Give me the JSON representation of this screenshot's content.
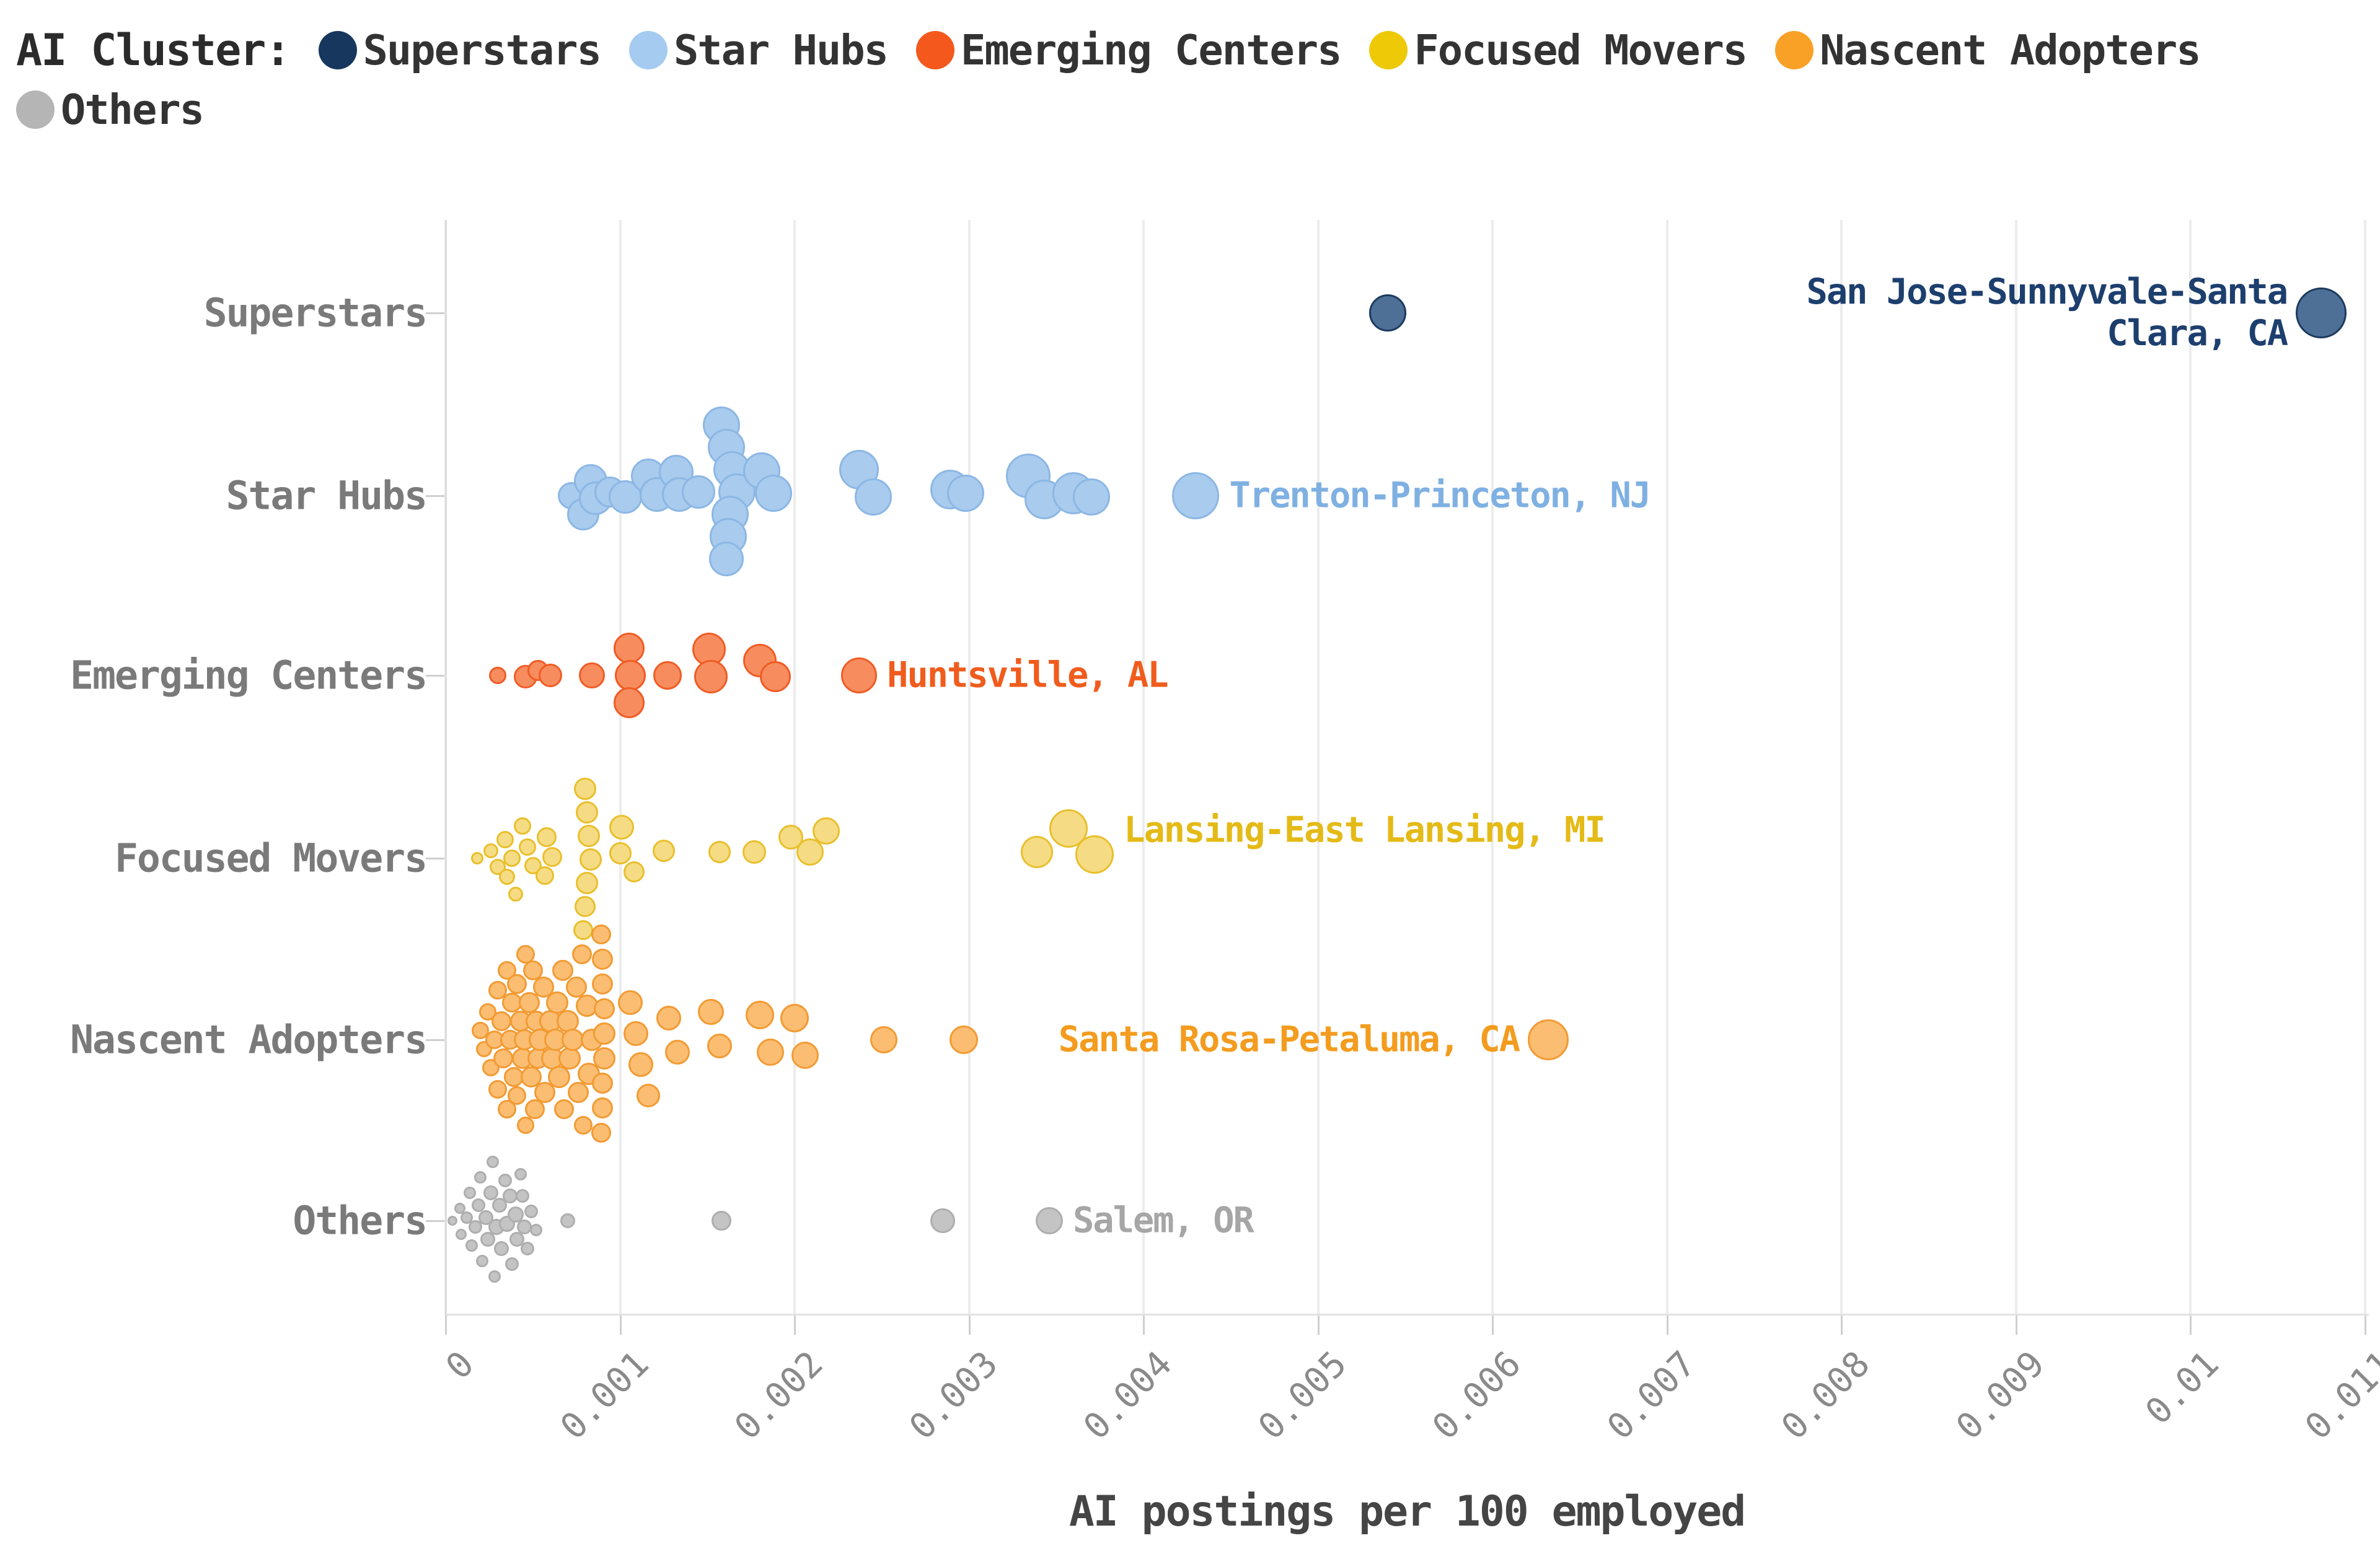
{
  "legend": {
    "title": "AI Cluster:",
    "items": [
      {
        "label": "Superstars",
        "color": "#17375e"
      },
      {
        "label": "Star Hubs",
        "color": "#a6cbf0"
      },
      {
        "label": "Emerging Centers",
        "color": "#f4581c"
      },
      {
        "label": "Focused Movers",
        "color": "#edc907"
      },
      {
        "label": "Nascent Adopters",
        "color": "#f9a126"
      },
      {
        "label": "Others",
        "color": "#b5b5b5"
      }
    ]
  },
  "chart_data": {
    "type": "scatter",
    "title": "",
    "xlabel": "AI postings per 100 employed",
    "ylabel": "",
    "x_range": [
      0,
      0.011
    ],
    "x_ticks": [
      "0",
      "0.001",
      "0.002",
      "0.003",
      "0.004",
      "0.005",
      "0.006",
      "0.007",
      "0.008",
      "0.009",
      "0.01",
      "0.011"
    ],
    "categories": [
      "Superstars",
      "Star Hubs",
      "Emerging Centers",
      "Focused Movers",
      "Nascent Adopters",
      "Others"
    ],
    "grid": true,
    "legend_position": "top",
    "series": [
      {
        "name": "Superstars",
        "fill": "#4f7096",
        "stroke": "#1c3a5f",
        "label_color": "#1d3f6e",
        "points": [
          {
            "x": 0.0054,
            "dy": 0,
            "r": 30
          },
          {
            "x": 0.01075,
            "dy": 0,
            "r": 41,
            "label": {
              "text": "San Jose-Sunnyvale-Santa\nClara, CA",
              "side": "left"
            }
          }
        ]
      },
      {
        "name": "Star Hubs",
        "fill": "#a8cbee",
        "stroke": "#8cb7e4",
        "label_color": "#7fb0e2",
        "points": [
          {
            "x": 0.00072,
            "dy": 0,
            "r": 22
          },
          {
            "x": 0.00079,
            "dy": 30,
            "r": 26
          },
          {
            "x": 0.00083,
            "dy": -24,
            "r": 27
          },
          {
            "x": 0.00086,
            "dy": 4,
            "r": 27
          },
          {
            "x": 0.00094,
            "dy": -6,
            "r": 25
          },
          {
            "x": 0.00103,
            "dy": 2,
            "r": 27
          },
          {
            "x": 0.00116,
            "dy": -32,
            "r": 28
          },
          {
            "x": 0.00121,
            "dy": -2,
            "r": 28
          },
          {
            "x": 0.00132,
            "dy": -38,
            "r": 28
          },
          {
            "x": 0.00134,
            "dy": -2,
            "r": 28
          },
          {
            "x": 0.00145,
            "dy": -6,
            "r": 27
          },
          {
            "x": 0.00158,
            "dy": -114,
            "r": 30
          },
          {
            "x": 0.00161,
            "dy": -78,
            "r": 30
          },
          {
            "x": 0.00164,
            "dy": -42,
            "r": 30
          },
          {
            "x": 0.00167,
            "dy": -6,
            "r": 30
          },
          {
            "x": 0.00163,
            "dy": 30,
            "r": 30
          },
          {
            "x": 0.00162,
            "dy": 66,
            "r": 30
          },
          {
            "x": 0.00161,
            "dy": 102,
            "r": 28
          },
          {
            "x": 0.00181,
            "dy": -40,
            "r": 30
          },
          {
            "x": 0.00188,
            "dy": -4,
            "r": 30
          },
          {
            "x": 0.00237,
            "dy": -42,
            "r": 32
          },
          {
            "x": 0.00245,
            "dy": 2,
            "r": 30
          },
          {
            "x": 0.00289,
            "dy": -10,
            "r": 32
          },
          {
            "x": 0.00298,
            "dy": -4,
            "r": 30
          },
          {
            "x": 0.00334,
            "dy": -32,
            "r": 36
          },
          {
            "x": 0.00343,
            "dy": 6,
            "r": 32
          },
          {
            "x": 0.0036,
            "dy": -4,
            "r": 34
          },
          {
            "x": 0.0037,
            "dy": 2,
            "r": 30
          },
          {
            "x": 0.0043,
            "dy": 0,
            "r": 38,
            "label": {
              "text": "Trenton-Princeton, NJ",
              "side": "right"
            }
          }
        ]
      },
      {
        "name": "Emerging Centers",
        "fill": "#f78d5e",
        "stroke": "#f05c25",
        "label_color": "#f05c1d",
        "points": [
          {
            "x": 0.0003,
            "dy": 0,
            "r": 14
          },
          {
            "x": 0.00046,
            "dy": 2,
            "r": 19
          },
          {
            "x": 0.00053,
            "dy": -8,
            "r": 17
          },
          {
            "x": 0.0006,
            "dy": 0,
            "r": 19
          },
          {
            "x": 0.00084,
            "dy": 0,
            "r": 21
          },
          {
            "x": 0.00105,
            "dy": -44,
            "r": 25
          },
          {
            "x": 0.00106,
            "dy": 0,
            "r": 25
          },
          {
            "x": 0.00105,
            "dy": 44,
            "r": 25
          },
          {
            "x": 0.00127,
            "dy": 0,
            "r": 23
          },
          {
            "x": 0.00151,
            "dy": -42,
            "r": 27
          },
          {
            "x": 0.00152,
            "dy": 2,
            "r": 27
          },
          {
            "x": 0.0018,
            "dy": -24,
            "r": 27
          },
          {
            "x": 0.00189,
            "dy": 2,
            "r": 25
          },
          {
            "x": 0.00237,
            "dy": 0,
            "r": 29,
            "label": {
              "text": "Huntsville, AL",
              "side": "right"
            }
          }
        ]
      },
      {
        "name": "Focused Movers",
        "fill": "#f5dc84",
        "stroke": "#e9bf2c",
        "label_color": "#e4ba16",
        "points": [
          {
            "x": 0.00018,
            "dy": 0,
            "r": 10
          },
          {
            "x": 0.00026,
            "dy": -12,
            "r": 12
          },
          {
            "x": 0.0003,
            "dy": 14,
            "r": 13
          },
          {
            "x": 0.00034,
            "dy": -30,
            "r": 14
          },
          {
            "x": 0.00038,
            "dy": 0,
            "r": 14
          },
          {
            "x": 0.00035,
            "dy": 30,
            "r": 13
          },
          {
            "x": 0.0004,
            "dy": 58,
            "r": 12
          },
          {
            "x": 0.00044,
            "dy": -52,
            "r": 14
          },
          {
            "x": 0.00047,
            "dy": -18,
            "r": 14
          },
          {
            "x": 0.0005,
            "dy": 12,
            "r": 14
          },
          {
            "x": 0.00058,
            "dy": -34,
            "r": 16
          },
          {
            "x": 0.00061,
            "dy": -2,
            "r": 16
          },
          {
            "x": 0.00057,
            "dy": 28,
            "r": 15
          },
          {
            "x": 0.0008,
            "dy": -112,
            "r": 18
          },
          {
            "x": 0.00081,
            "dy": -74,
            "r": 18
          },
          {
            "x": 0.00082,
            "dy": -36,
            "r": 18
          },
          {
            "x": 0.00083,
            "dy": 2,
            "r": 18
          },
          {
            "x": 0.00081,
            "dy": 40,
            "r": 18
          },
          {
            "x": 0.0008,
            "dy": 78,
            "r": 17
          },
          {
            "x": 0.00079,
            "dy": 116,
            "r": 16
          },
          {
            "x": 0.00101,
            "dy": -50,
            "r": 20
          },
          {
            "x": 0.001,
            "dy": -8,
            "r": 18
          },
          {
            "x": 0.00108,
            "dy": 22,
            "r": 17
          },
          {
            "x": 0.00125,
            "dy": -12,
            "r": 18
          },
          {
            "x": 0.00157,
            "dy": -10,
            "r": 18
          },
          {
            "x": 0.00177,
            "dy": -10,
            "r": 19
          },
          {
            "x": 0.00198,
            "dy": -34,
            "r": 20
          },
          {
            "x": 0.00209,
            "dy": -10,
            "r": 22
          },
          {
            "x": 0.00218,
            "dy": -44,
            "r": 22
          },
          {
            "x": 0.00339,
            "dy": -10,
            "r": 26
          },
          {
            "x": 0.00357,
            "dy": -48,
            "r": 31
          },
          {
            "x": 0.00372,
            "dy": -6,
            "r": 31,
            "label": {
              "text": "Lansing-East Lansing, MI",
              "side": "right",
              "dy": -45
            }
          }
        ]
      },
      {
        "name": "Nascent Adopters",
        "fill": "#fbbd72",
        "stroke": "#f29b33",
        "label_color": "#f39c1f",
        "points": [
          {
            "x": 0.0002,
            "dy": -15,
            "r": 14
          },
          {
            "x": 0.00022,
            "dy": 15,
            "r": 13
          },
          {
            "x": 0.00024,
            "dy": -45,
            "r": 14
          },
          {
            "x": 0.00026,
            "dy": 45,
            "r": 14
          },
          {
            "x": 0.00028,
            "dy": 0,
            "r": 15
          },
          {
            "x": 0.0003,
            "dy": -80,
            "r": 15
          },
          {
            "x": 0.0003,
            "dy": 80,
            "r": 15
          },
          {
            "x": 0.00032,
            "dy": -30,
            "r": 16
          },
          {
            "x": 0.00033,
            "dy": 30,
            "r": 16
          },
          {
            "x": 0.00035,
            "dy": -112,
            "r": 15
          },
          {
            "x": 0.00035,
            "dy": 112,
            "r": 15
          },
          {
            "x": 0.00037,
            "dy": 0,
            "r": 16
          },
          {
            "x": 0.00038,
            "dy": -60,
            "r": 16
          },
          {
            "x": 0.00039,
            "dy": 60,
            "r": 16
          },
          {
            "x": 0.00041,
            "dy": -90,
            "r": 16
          },
          {
            "x": 0.00041,
            "dy": 90,
            "r": 15
          },
          {
            "x": 0.00043,
            "dy": -30,
            "r": 17
          },
          {
            "x": 0.00044,
            "dy": 30,
            "r": 17
          },
          {
            "x": 0.00045,
            "dy": 0,
            "r": 17
          },
          {
            "x": 0.00046,
            "dy": -138,
            "r": 15
          },
          {
            "x": 0.00046,
            "dy": 138,
            "r": 14
          },
          {
            "x": 0.00048,
            "dy": -60,
            "r": 17
          },
          {
            "x": 0.00049,
            "dy": 60,
            "r": 17
          },
          {
            "x": 0.0005,
            "dy": -112,
            "r": 16
          },
          {
            "x": 0.00051,
            "dy": 112,
            "r": 16
          },
          {
            "x": 0.00052,
            "dy": -30,
            "r": 17
          },
          {
            "x": 0.00053,
            "dy": 30,
            "r": 17
          },
          {
            "x": 0.00054,
            "dy": 0,
            "r": 18
          },
          {
            "x": 0.00056,
            "dy": -85,
            "r": 17
          },
          {
            "x": 0.00057,
            "dy": 85,
            "r": 17
          },
          {
            "x": 0.0006,
            "dy": -30,
            "r": 18
          },
          {
            "x": 0.00061,
            "dy": 30,
            "r": 18
          },
          {
            "x": 0.00063,
            "dy": 0,
            "r": 18
          },
          {
            "x": 0.00064,
            "dy": -60,
            "r": 18
          },
          {
            "x": 0.00065,
            "dy": 60,
            "r": 18
          },
          {
            "x": 0.00067,
            "dy": -112,
            "r": 17
          },
          {
            "x": 0.00068,
            "dy": 112,
            "r": 16
          },
          {
            "x": 0.0007,
            "dy": -30,
            "r": 18
          },
          {
            "x": 0.00071,
            "dy": 30,
            "r": 18
          },
          {
            "x": 0.00073,
            "dy": 0,
            "r": 18
          },
          {
            "x": 0.00075,
            "dy": -85,
            "r": 17
          },
          {
            "x": 0.00076,
            "dy": 85,
            "r": 17
          },
          {
            "x": 0.00078,
            "dy": -138,
            "r": 16
          },
          {
            "x": 0.00079,
            "dy": 138,
            "r": 15
          },
          {
            "x": 0.00081,
            "dy": -55,
            "r": 18
          },
          {
            "x": 0.00082,
            "dy": 55,
            "r": 18
          },
          {
            "x": 0.00084,
            "dy": 0,
            "r": 18
          },
          {
            "x": 0.00089,
            "dy": -170,
            "r": 16
          },
          {
            "x": 0.0009,
            "dy": -130,
            "r": 17
          },
          {
            "x": 0.0009,
            "dy": -90,
            "r": 17
          },
          {
            "x": 0.00091,
            "dy": -50,
            "r": 17
          },
          {
            "x": 0.00091,
            "dy": -10,
            "r": 18
          },
          {
            "x": 0.00091,
            "dy": 30,
            "r": 18
          },
          {
            "x": 0.0009,
            "dy": 70,
            "r": 17
          },
          {
            "x": 0.0009,
            "dy": 110,
            "r": 17
          },
          {
            "x": 0.00089,
            "dy": 150,
            "r": 16
          },
          {
            "x": 0.00106,
            "dy": -60,
            "r": 20
          },
          {
            "x": 0.00109,
            "dy": -10,
            "r": 20
          },
          {
            "x": 0.00112,
            "dy": 40,
            "r": 20
          },
          {
            "x": 0.00116,
            "dy": 90,
            "r": 19
          },
          {
            "x": 0.00128,
            "dy": -35,
            "r": 20
          },
          {
            "x": 0.00133,
            "dy": 20,
            "r": 20
          },
          {
            "x": 0.00152,
            "dy": -45,
            "r": 21
          },
          {
            "x": 0.00157,
            "dy": 10,
            "r": 20
          },
          {
            "x": 0.0018,
            "dy": -40,
            "r": 23
          },
          {
            "x": 0.00186,
            "dy": 20,
            "r": 22
          },
          {
            "x": 0.002,
            "dy": -35,
            "r": 23
          },
          {
            "x": 0.00206,
            "dy": 25,
            "r": 22
          },
          {
            "x": 0.00251,
            "dy": 0,
            "r": 22
          },
          {
            "x": 0.00297,
            "dy": 0,
            "r": 23
          },
          {
            "x": 0.00632,
            "dy": 0,
            "r": 33,
            "label": {
              "text": "Santa Rosa-Petaluma, CA",
              "side": "left"
            }
          }
        ]
      },
      {
        "name": "Others",
        "fill": "#c4c4c4",
        "stroke": "#aeaeae",
        "label_color": "#a6a6a6",
        "points": [
          {
            "x": 4e-05,
            "dy": 0,
            "r": 8
          },
          {
            "x": 8e-05,
            "dy": -20,
            "r": 9
          },
          {
            "x": 9e-05,
            "dy": 22,
            "r": 9
          },
          {
            "x": 0.00012,
            "dy": -5,
            "r": 10
          },
          {
            "x": 0.00014,
            "dy": -45,
            "r": 10
          },
          {
            "x": 0.00015,
            "dy": 40,
            "r": 10
          },
          {
            "x": 0.00017,
            "dy": 10,
            "r": 11
          },
          {
            "x": 0.00019,
            "dy": -25,
            "r": 11
          },
          {
            "x": 0.0002,
            "dy": -70,
            "r": 10
          },
          {
            "x": 0.00021,
            "dy": 65,
            "r": 10
          },
          {
            "x": 0.00023,
            "dy": -5,
            "r": 12
          },
          {
            "x": 0.00024,
            "dy": 30,
            "r": 12
          },
          {
            "x": 0.00026,
            "dy": -45,
            "r": 12
          },
          {
            "x": 0.00027,
            "dy": -95,
            "r": 10
          },
          {
            "x": 0.00028,
            "dy": 90,
            "r": 10
          },
          {
            "x": 0.00029,
            "dy": 10,
            "r": 13
          },
          {
            "x": 0.00031,
            "dy": -25,
            "r": 12
          },
          {
            "x": 0.00032,
            "dy": 45,
            "r": 12
          },
          {
            "x": 0.00034,
            "dy": -65,
            "r": 11
          },
          {
            "x": 0.00035,
            "dy": 5,
            "r": 13
          },
          {
            "x": 0.00037,
            "dy": -40,
            "r": 12
          },
          {
            "x": 0.00038,
            "dy": 70,
            "r": 11
          },
          {
            "x": 0.0004,
            "dy": -10,
            "r": 13
          },
          {
            "x": 0.00041,
            "dy": 30,
            "r": 12
          },
          {
            "x": 0.00043,
            "dy": -75,
            "r": 10
          },
          {
            "x": 0.00044,
            "dy": -40,
            "r": 11
          },
          {
            "x": 0.00045,
            "dy": 10,
            "r": 12
          },
          {
            "x": 0.00047,
            "dy": 45,
            "r": 11
          },
          {
            "x": 0.00049,
            "dy": -15,
            "r": 11
          },
          {
            "x": 0.00052,
            "dy": 15,
            "r": 10
          },
          {
            "x": 0.0007,
            "dy": 0,
            "r": 12
          },
          {
            "x": 0.00158,
            "dy": 0,
            "r": 16
          },
          {
            "x": 0.00285,
            "dy": 0,
            "r": 20
          },
          {
            "x": 0.00346,
            "dy": 0,
            "r": 22,
            "label": {
              "text": "Salem, OR",
              "side": "right"
            }
          }
        ]
      }
    ]
  }
}
